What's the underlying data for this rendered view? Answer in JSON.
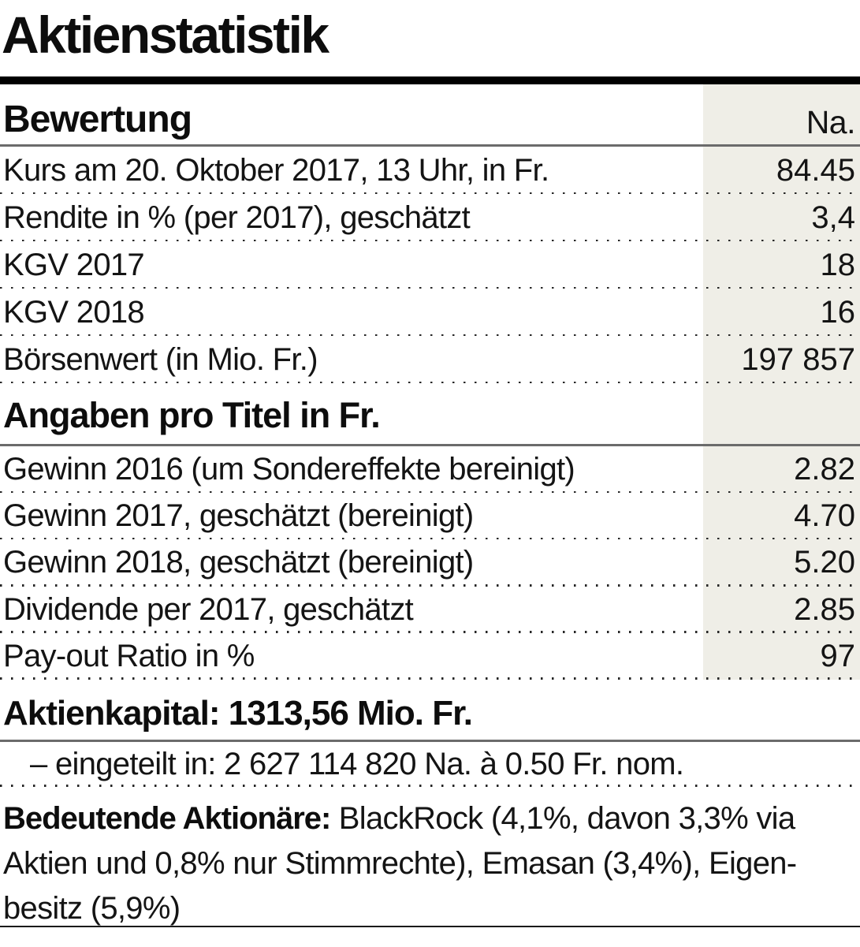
{
  "title": "Aktienstatistik",
  "colors": {
    "value_column_shade": "#efeee7",
    "rule_gray": "#6b6b6b",
    "rule_black": "#000000",
    "text": "#141414"
  },
  "valuation": {
    "header": "Bewertung",
    "unit": "Na.",
    "rows": [
      {
        "label": "Kurs am 20. Oktober 2017, 13 Uhr, in Fr.",
        "value": "84.45"
      },
      {
        "label": "Rendite in % (per 2017), geschätzt",
        "value": "3,4"
      },
      {
        "label": "KGV 2017",
        "value": "18"
      },
      {
        "label": "KGV 2018",
        "value": "16"
      },
      {
        "label": "Börsenwert (in Mio. Fr.)",
        "value": "197 857"
      }
    ]
  },
  "per_share": {
    "header": "Angaben pro Titel in Fr.",
    "rows": [
      {
        "label": "Gewinn 2016 (um Sondereffekte bereinigt)",
        "value": "2.82"
      },
      {
        "label": "Gewinn 2017, geschätzt (bereinigt)",
        "value": "4.70"
      },
      {
        "label": "Gewinn 2018, geschätzt (bereinigt)",
        "value": "5.20"
      },
      {
        "label": "Dividende per 2017, geschätzt",
        "value": "2.85"
      },
      {
        "label": "Pay-out Ratio in %",
        "value": "97"
      }
    ]
  },
  "share_capital": {
    "heading": "Aktienkapital: 1313,56 Mio. Fr.",
    "detail": "– eingeteilt in: 2 627 114 820 Na. à 0.50 Fr. nom."
  },
  "shareholders": {
    "label": "Bedeutende Aktionäre:",
    "line1_rest": " BlackRock (4,1%, davon 3,3% via",
    "line2": "Aktien und 0,8% nur Stimmrechte), Emasan (3,4%), Eigen-",
    "line3": "besitz (5,9%)"
  }
}
